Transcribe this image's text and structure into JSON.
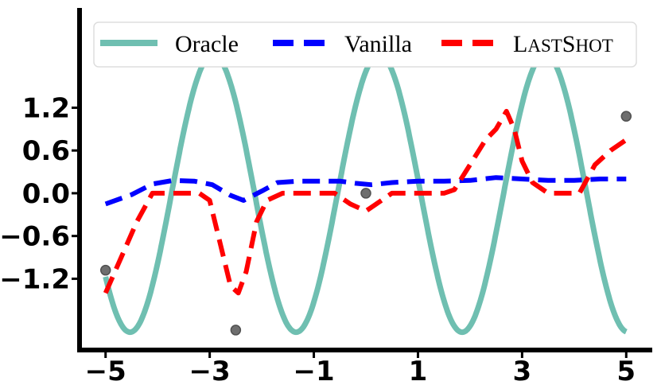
{
  "chart_data": {
    "type": "line",
    "title": "",
    "xlabel": "",
    "ylabel": "",
    "xlim": [
      -5.5,
      5.5
    ],
    "ylim": [
      -2.2,
      2.6
    ],
    "x_ticks": [
      -5,
      -3,
      -1,
      1,
      3,
      5
    ],
    "x_tick_labels": [
      "−5",
      "−3",
      "−1",
      "1",
      "3",
      "5"
    ],
    "y_ticks": [
      -1.2,
      -0.6,
      0.0,
      0.6,
      1.2
    ],
    "y_tick_labels": [
      "−1.2",
      "−0.6",
      "0.0",
      "0.6",
      "1.2"
    ],
    "grid": false,
    "legend_position": "top",
    "legend": [
      {
        "series": "oracle",
        "label": "Oracle"
      },
      {
        "series": "vanilla",
        "label": "Vanilla"
      },
      {
        "series": "lastshot",
        "label_parts": [
          "L",
          "AST",
          "S",
          "HOT"
        ]
      }
    ],
    "series": [
      {
        "name": "Oracle",
        "key": "oracle",
        "color": "#6fbfb1",
        "style": "solid",
        "function": {
          "amplitude": 1.95,
          "frequency": 1.97,
          "phase": 1.07,
          "x_range": [
            -5,
            5
          ]
        }
      },
      {
        "name": "Vanilla",
        "key": "vanilla",
        "color": "#0000ff",
        "style": "dashed",
        "x": [
          -5.0,
          -4.5,
          -4.1,
          -3.7,
          -3.3,
          -2.95,
          -2.6,
          -2.35,
          -2.0,
          -1.7,
          -1.3,
          -0.9,
          -0.5,
          -0.2,
          0.1,
          0.5,
          1.0,
          1.5,
          2.0,
          2.5,
          3.0,
          3.5,
          4.0,
          4.5,
          5.0
        ],
        "y": [
          -0.15,
          -0.02,
          0.13,
          0.18,
          0.17,
          0.12,
          -0.03,
          -0.1,
          0.03,
          0.15,
          0.17,
          0.17,
          0.17,
          0.14,
          0.12,
          0.15,
          0.17,
          0.17,
          0.18,
          0.22,
          0.2,
          0.18,
          0.18,
          0.2,
          0.2
        ]
      },
      {
        "name": "LastShot",
        "key": "lastshot",
        "color": "#ff0000",
        "style": "dashed",
        "x": [
          -5.0,
          -4.7,
          -4.4,
          -4.1,
          -3.8,
          -3.5,
          -3.2,
          -3.0,
          -2.8,
          -2.6,
          -2.45,
          -2.3,
          -2.1,
          -1.9,
          -1.6,
          -1.3,
          -1.0,
          -0.6,
          -0.3,
          0.0,
          0.2,
          0.5,
          1.0,
          1.5,
          1.7,
          2.0,
          2.3,
          2.5,
          2.7,
          2.85,
          3.0,
          3.2,
          3.5,
          3.8,
          4.1,
          4.4,
          4.7,
          5.0
        ],
        "y": [
          -1.4,
          -0.9,
          -0.4,
          0.0,
          0.0,
          0.0,
          0.0,
          -0.1,
          -0.7,
          -1.3,
          -1.4,
          -1.1,
          -0.4,
          -0.1,
          0.0,
          0.0,
          0.0,
          0.0,
          -0.15,
          -0.25,
          -0.15,
          0.0,
          0.0,
          0.0,
          0.05,
          0.4,
          0.75,
          0.9,
          1.15,
          0.9,
          0.45,
          0.15,
          0.0,
          0.0,
          0.0,
          0.4,
          0.6,
          0.75
        ]
      }
    ],
    "points": {
      "name": "context-points",
      "color": "#555555",
      "x": [
        -5.0,
        -2.5,
        0.0,
        2.5,
        5.0
      ],
      "y": [
        -1.08,
        -1.92,
        0.0,
        1.92,
        1.08
      ]
    }
  }
}
